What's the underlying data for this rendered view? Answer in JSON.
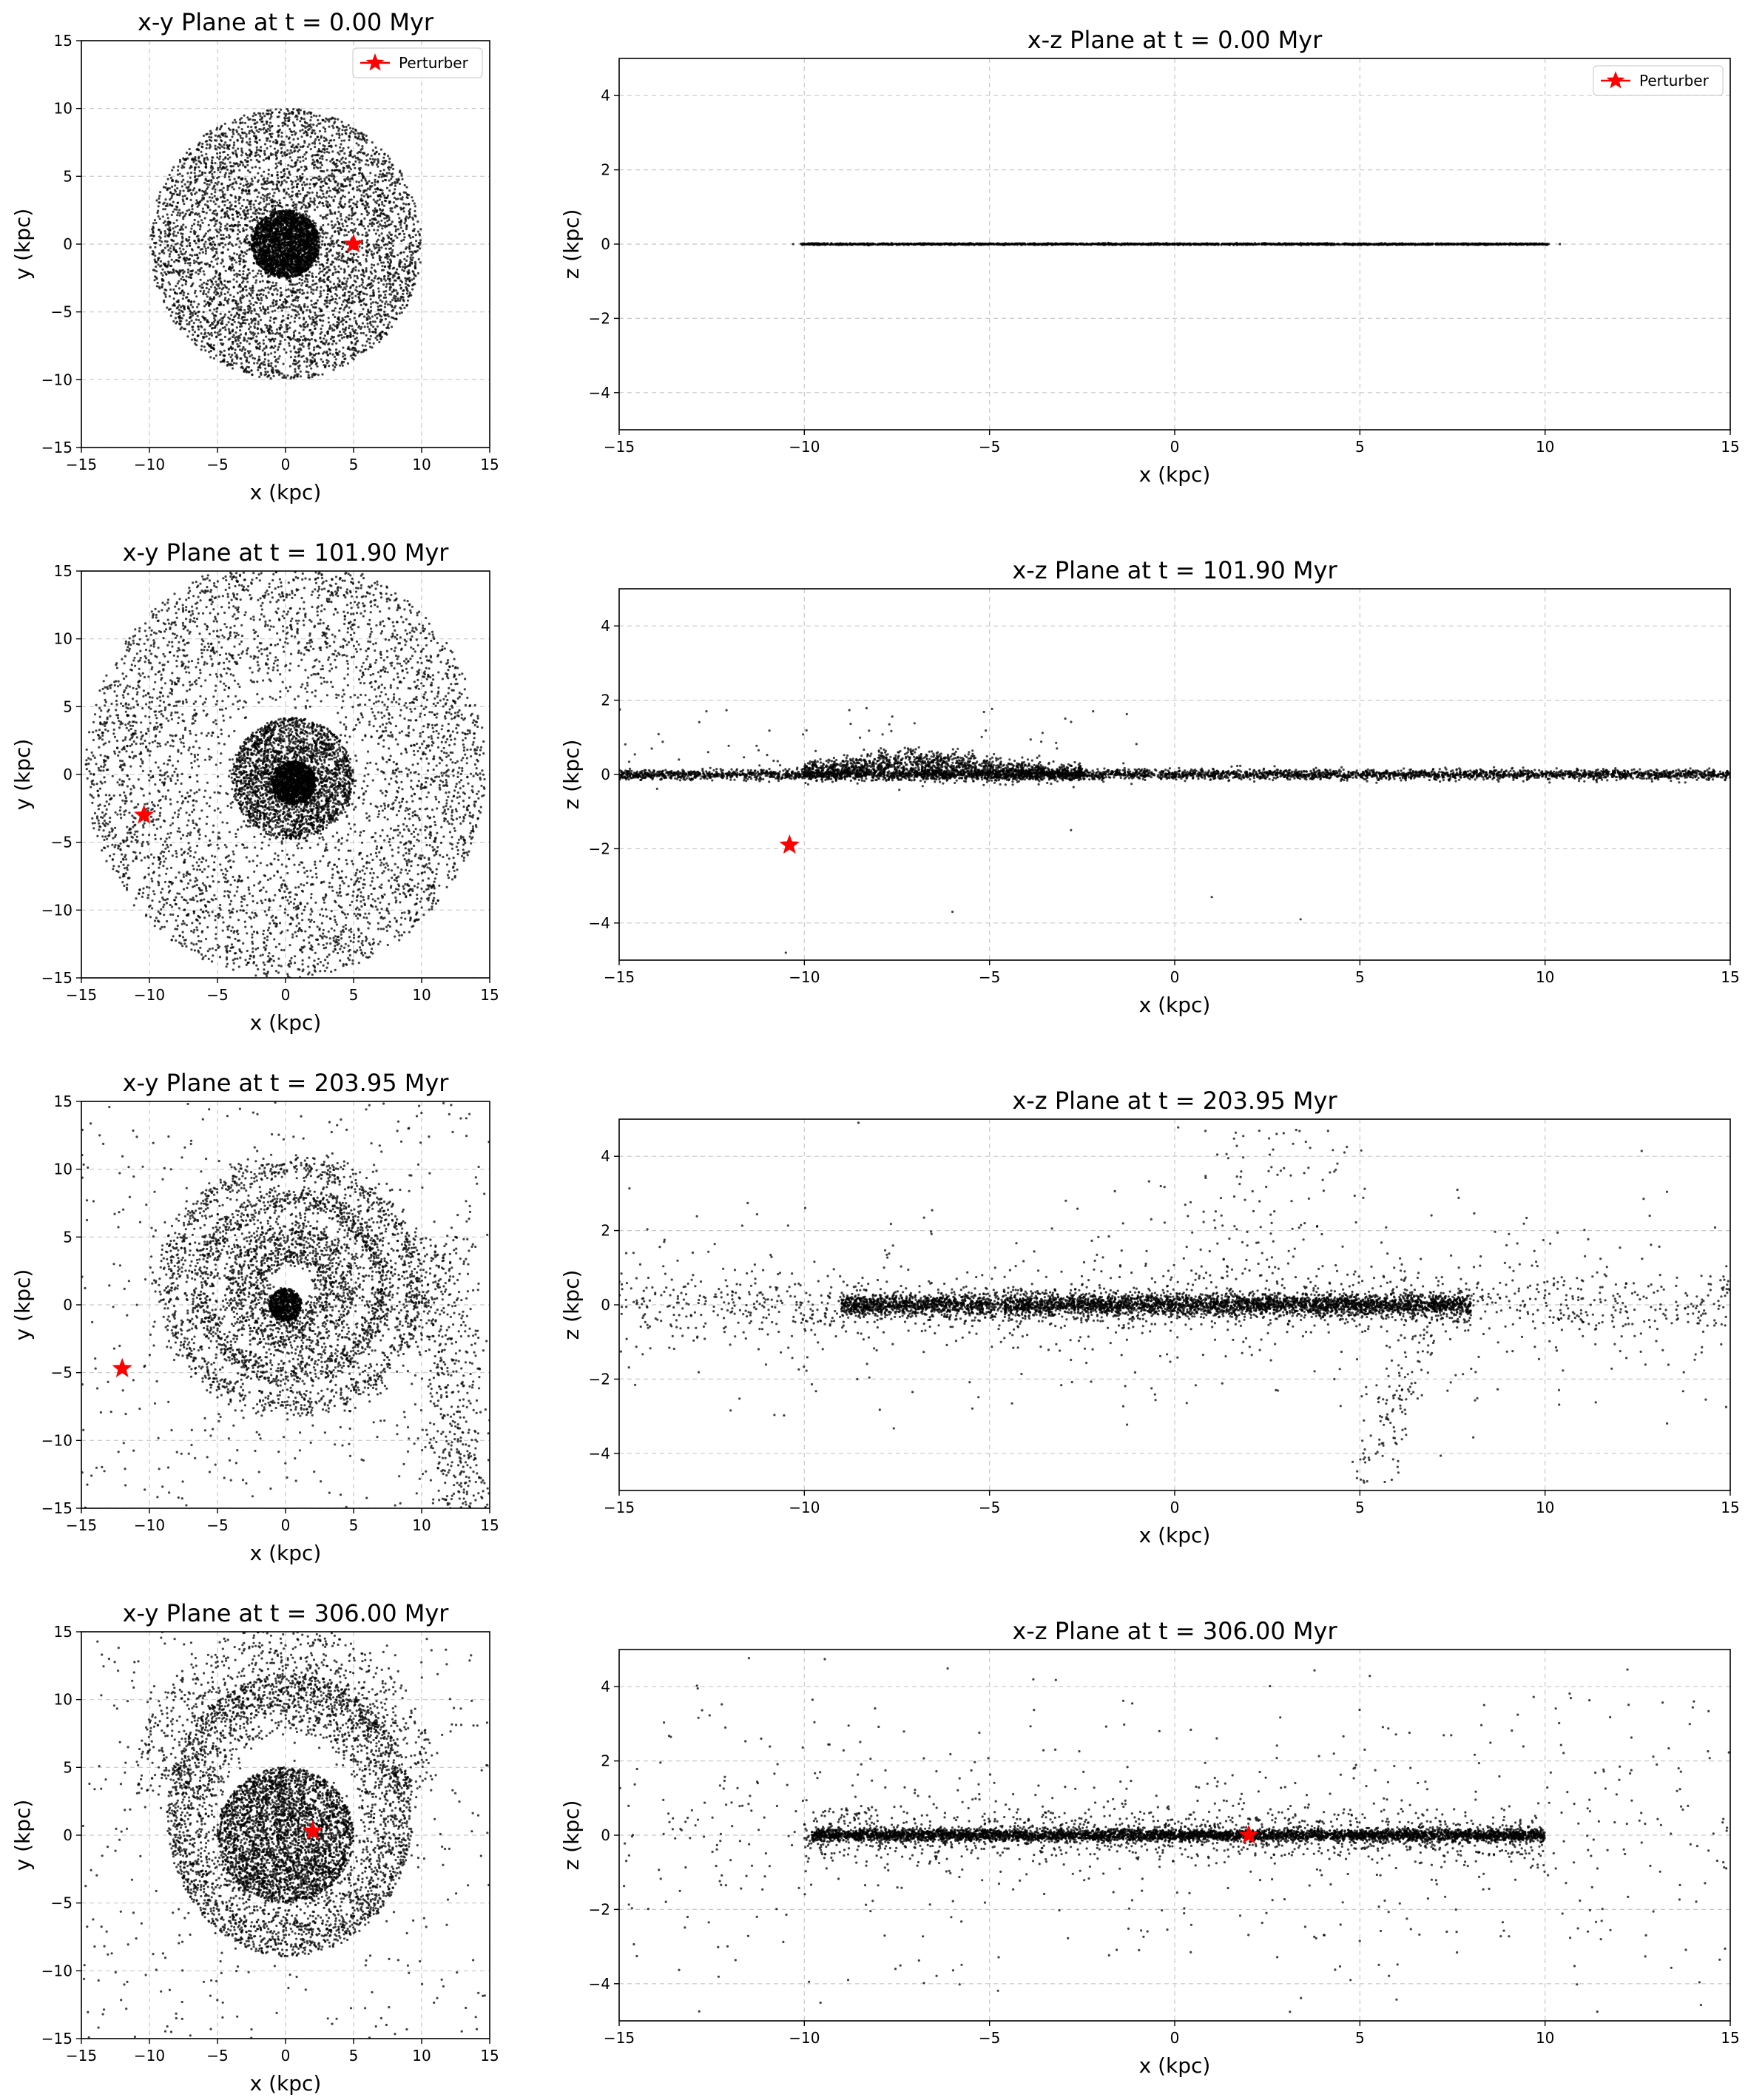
{
  "panels": [
    {
      "title": "x-y Plane at t = 0.00 Myr",
      "plane": "xy",
      "xlabel": "x (kpc)",
      "ylabel": "y (kpc)",
      "legend": "Perturber",
      "perturber": [
        5.0,
        0.0
      ]
    },
    {
      "title": "x-z Plane at t = 0.00 Myr",
      "plane": "xz",
      "xlabel": "x (kpc)",
      "ylabel": "z (kpc)",
      "legend": "Perturber",
      "perturber": null
    },
    {
      "title": "x-y Plane at t = 101.90 Myr",
      "plane": "xy",
      "xlabel": "x (kpc)",
      "ylabel": "y (kpc)",
      "perturber": [
        -10.4,
        -3.0
      ]
    },
    {
      "title": "x-z Plane at t = 101.90 Myr",
      "plane": "xz",
      "xlabel": "x (kpc)",
      "ylabel": "z (kpc)",
      "perturber": [
        -10.4,
        -1.9
      ]
    },
    {
      "title": "x-y Plane at t = 203.95 Myr",
      "plane": "xy",
      "xlabel": "x (kpc)",
      "ylabel": "y (kpc)",
      "perturber": [
        -12.0,
        -4.7
      ]
    },
    {
      "title": "x-z Plane at t = 203.95 Myr",
      "plane": "xz",
      "xlabel": "x (kpc)",
      "ylabel": "z (kpc)",
      "perturber": null
    },
    {
      "title": "x-y Plane at t = 306.00 Myr",
      "plane": "xy",
      "xlabel": "x (kpc)",
      "ylabel": "y (kpc)",
      "perturber": [
        2.0,
        0.3
      ]
    },
    {
      "title": "x-z Plane at t = 306.00 Myr",
      "plane": "xz",
      "xlabel": "x (kpc)",
      "ylabel": "z (kpc)",
      "perturber": [
        2.0,
        0.0
      ]
    }
  ],
  "chart_data": [
    {
      "type": "scatter",
      "title": "x-y Plane at t = 0.00 Myr",
      "xlabel": "x (kpc)",
      "ylabel": "y (kpc)",
      "xlim": [
        -15,
        15
      ],
      "ylim": [
        -15,
        15
      ],
      "xticks": [
        -15,
        -10,
        -5,
        0,
        5,
        10,
        15
      ],
      "yticks": [
        -15,
        -10,
        -5,
        0,
        5,
        10,
        15
      ],
      "grid": true,
      "legend": {
        "entries": [
          "Perturber"
        ],
        "placement": "top-right"
      },
      "series": [
        {
          "kind": "disk particles",
          "distribution": "uniform disk",
          "radius_kpc": 10.0,
          "color": "#000000"
        },
        {
          "name": "Perturber",
          "marker": "star",
          "color": "#ff0000",
          "x": [
            5.0
          ],
          "y": [
            0.0
          ]
        }
      ]
    },
    {
      "type": "scatter",
      "title": "x-z Plane at t = 0.00 Myr",
      "xlabel": "x (kpc)",
      "ylabel": "z (kpc)",
      "xlim": [
        -15,
        15
      ],
      "ylim": [
        -5,
        5
      ],
      "xticks": [
        -15,
        -10,
        -5,
        0,
        5,
        10,
        15
      ],
      "yticks": [
        -4,
        -2,
        0,
        2,
        4
      ],
      "grid": true,
      "legend": {
        "entries": [
          "Perturber"
        ],
        "placement": "top-right"
      },
      "series": [
        {
          "kind": "disk particles",
          "distribution": "thin line",
          "x_range": [
            -10.2,
            10.2
          ],
          "z": 0.0,
          "color": "#000000"
        }
      ]
    },
    {
      "type": "scatter",
      "title": "x-y Plane at t = 101.90 Myr",
      "xlabel": "x (kpc)",
      "ylabel": "y (kpc)",
      "xlim": [
        -15,
        15
      ],
      "ylim": [
        -15,
        15
      ],
      "xticks": [
        -15,
        -10,
        -5,
        0,
        5,
        10,
        15
      ],
      "yticks": [
        -15,
        -10,
        -5,
        0,
        5,
        10,
        15
      ],
      "grid": true,
      "series": [
        {
          "kind": "disk particles",
          "distribution": "dense core with wide scattered envelope",
          "color": "#000000"
        },
        {
          "name": "Perturber",
          "marker": "star",
          "color": "#ff0000",
          "x": [
            -10.4
          ],
          "y": [
            -3.0
          ]
        }
      ]
    },
    {
      "type": "scatter",
      "title": "x-z Plane at t = 101.90 Myr",
      "xlabel": "x (kpc)",
      "ylabel": "z (kpc)",
      "xlim": [
        -15,
        15
      ],
      "ylim": [
        -5,
        5
      ],
      "xticks": [
        -15,
        -10,
        -5,
        0,
        5,
        10,
        15
      ],
      "yticks": [
        -4,
        -2,
        0,
        2,
        4
      ],
      "grid": true,
      "series": [
        {
          "kind": "disk particles",
          "distribution": "thin disk with warped bump near x = -7",
          "color": "#000000"
        },
        {
          "name": "Perturber",
          "marker": "star",
          "color": "#ff0000",
          "x": [
            -10.4
          ],
          "y": [
            -1.9
          ]
        }
      ]
    },
    {
      "type": "scatter",
      "title": "x-y Plane at t = 203.95 Myr",
      "xlabel": "x (kpc)",
      "ylabel": "y (kpc)",
      "xlim": [
        -15,
        15
      ],
      "ylim": [
        -15,
        15
      ],
      "xticks": [
        -15,
        -10,
        -5,
        0,
        5,
        10,
        15
      ],
      "yticks": [
        -15,
        -10,
        -5,
        0,
        5,
        10,
        15
      ],
      "grid": true,
      "series": [
        {
          "kind": "disk particles",
          "distribution": "ring structures with tidal tail toward lower right",
          "color": "#000000"
        },
        {
          "name": "Perturber",
          "marker": "star",
          "color": "#ff0000",
          "x": [
            -12.0
          ],
          "y": [
            -4.7
          ]
        }
      ]
    },
    {
      "type": "scatter",
      "title": "x-z Plane at t = 203.95 Myr",
      "xlabel": "x (kpc)",
      "ylabel": "z (kpc)",
      "xlim": [
        -15,
        15
      ],
      "ylim": [
        -5,
        5
      ],
      "xticks": [
        -15,
        -10,
        -5,
        0,
        5,
        10,
        15
      ],
      "yticks": [
        -4,
        -2,
        0,
        2,
        4
      ],
      "grid": true,
      "series": [
        {
          "kind": "disk particles",
          "distribution": "thickened disk with vertical scatter",
          "color": "#000000"
        }
      ]
    },
    {
      "type": "scatter",
      "title": "x-y Plane at t = 306.00 Myr",
      "xlabel": "x (kpc)",
      "ylabel": "y (kpc)",
      "xlim": [
        -15,
        15
      ],
      "ylim": [
        -15,
        15
      ],
      "xticks": [
        -15,
        -10,
        -5,
        0,
        5,
        10,
        15
      ],
      "yticks": [
        -15,
        -10,
        -5,
        0,
        5,
        10,
        15
      ],
      "grid": true,
      "series": [
        {
          "kind": "disk particles",
          "distribution": "dense disk elongated upward with scattered halo",
          "color": "#000000"
        },
        {
          "name": "Perturber",
          "marker": "star",
          "color": "#ff0000",
          "x": [
            2.0
          ],
          "y": [
            0.3
          ]
        }
      ]
    },
    {
      "type": "scatter",
      "title": "x-z Plane at t = 306.00 Myr",
      "xlabel": "x (kpc)",
      "ylabel": "z (kpc)",
      "xlim": [
        -15,
        15
      ],
      "ylim": [
        -5,
        5
      ],
      "xticks": [
        -15,
        -10,
        -5,
        0,
        5,
        10,
        15
      ],
      "yticks": [
        -4,
        -2,
        0,
        2,
        4
      ],
      "grid": true,
      "series": [
        {
          "kind": "disk particles",
          "distribution": "thin disk with scattered halo",
          "color": "#000000"
        },
        {
          "name": "Perturber",
          "marker": "star",
          "color": "#ff0000",
          "x": [
            2.0
          ],
          "y": [
            0.0
          ]
        }
      ]
    }
  ]
}
